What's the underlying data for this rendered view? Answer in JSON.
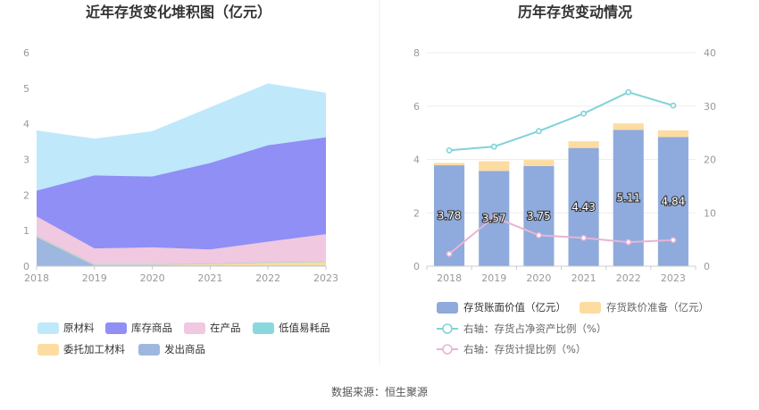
{
  "source": "数据来源：恒生聚源",
  "chart_data": [
    {
      "type": "area",
      "stacked": true,
      "title": "近年存货变化堆积图（亿元）",
      "x": [
        "2018",
        "2019",
        "2020",
        "2021",
        "2022",
        "2023"
      ],
      "ylim": [
        0,
        6
      ],
      "yticks": [
        "0",
        "1",
        "2",
        "3",
        "4",
        "5",
        "6"
      ],
      "grid": false,
      "legend_position": "bottom",
      "series": [
        {
          "name": "发出商品",
          "color": "#9db7e0",
          "values": [
            0.82,
            0.02,
            0.02,
            0.02,
            0.02,
            0.02
          ]
        },
        {
          "name": "委托加工材料",
          "color": "#fcdca0",
          "values": [
            0.02,
            0.02,
            0.02,
            0.04,
            0.08,
            0.1
          ]
        },
        {
          "name": "低值易耗品",
          "color": "#8ad8dd",
          "values": [
            0.01,
            0.01,
            0.01,
            0.01,
            0.01,
            0.01
          ]
        },
        {
          "name": "在产品",
          "color": "#f0c8e0",
          "values": [
            0.55,
            0.45,
            0.48,
            0.4,
            0.58,
            0.77
          ]
        },
        {
          "name": "库存商品",
          "color": "#8f8ff5",
          "values": [
            0.72,
            2.05,
            1.99,
            2.43,
            2.71,
            2.72
          ]
        },
        {
          "name": "原材料",
          "color": "#bfe8fb",
          "values": [
            1.68,
            1.02,
            1.26,
            1.55,
            1.72,
            1.24
          ]
        }
      ],
      "legend_order": [
        "原材料",
        "库存商品",
        "在产品",
        "低值易耗品",
        "委托加工材料",
        "发出商品"
      ]
    },
    {
      "type": "bar",
      "stacked": true,
      "title": "历年存货变动情况",
      "categories": [
        "2018",
        "2019",
        "2020",
        "2021",
        "2022",
        "2023"
      ],
      "ylim": [
        0,
        8
      ],
      "yticks": [
        "0",
        "2",
        "4",
        "6",
        "8"
      ],
      "y2lim": [
        0,
        40
      ],
      "y2ticks": [
        "0",
        "10",
        "20",
        "30",
        "40"
      ],
      "grid": true,
      "legend_position": "bottom",
      "series": [
        {
          "name": "存货账面价值（亿元）",
          "color": "#8faadc",
          "values": [
            3.78,
            3.57,
            3.75,
            4.43,
            5.11,
            4.84
          ],
          "labels": [
            "3.78",
            "3.57",
            "3.75",
            "4.43",
            "5.11",
            "4.84"
          ]
        },
        {
          "name": "存货跌价准备（亿元）",
          "color": "#fcdca0",
          "values": [
            0.09,
            0.36,
            0.23,
            0.25,
            0.24,
            0.25
          ]
        }
      ],
      "lines": [
        {
          "name": "右轴：存货占净资产比例（%）",
          "color": "#7fd3d8",
          "axis": "right",
          "values": [
            21.7,
            22.4,
            25.3,
            28.6,
            32.6,
            30.1
          ]
        },
        {
          "name": "右轴：存货计提比例（%）",
          "color": "#e8b4d4",
          "axis": "right",
          "values": [
            2.3,
            9.2,
            5.8,
            5.3,
            4.5,
            4.9
          ]
        }
      ]
    }
  ]
}
